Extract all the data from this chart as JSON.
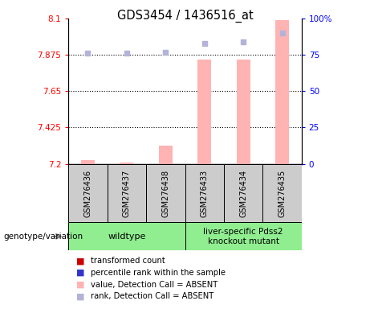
{
  "title": "GDS3454 / 1436516_at",
  "samples": [
    "GSM276436",
    "GSM276437",
    "GSM276438",
    "GSM276433",
    "GSM276434",
    "GSM276435"
  ],
  "transformed_counts": [
    7.225,
    7.21,
    7.31,
    7.845,
    7.845,
    8.09
  ],
  "percentile_ranks": [
    76,
    76,
    77,
    83,
    84,
    90
  ],
  "ylim_left": [
    7.2,
    8.1
  ],
  "ylim_right": [
    0,
    100
  ],
  "yticks_left": [
    7.2,
    7.425,
    7.65,
    7.875,
    8.1
  ],
  "yticks_right": [
    0,
    25,
    50,
    75,
    100
  ],
  "ytick_labels_left": [
    "7.2",
    "7.425",
    "7.65",
    "7.875",
    "8.1"
  ],
  "ytick_labels_right": [
    "0",
    "25",
    "50",
    "75",
    "100%"
  ],
  "bar_color": "#ffb3b3",
  "dot_color": "#b3b3d9",
  "bar_width": 0.35,
  "genotype_label": "genotype/variation",
  "wt_label": "wildtype",
  "ko_label": "liver-specific Pdss2\nknockout mutant",
  "group_color": "#90ee90",
  "sample_box_color": "#cccccc",
  "legend_items": [
    {
      "label": "transformed count",
      "color": "#cc0000"
    },
    {
      "label": "percentile rank within the sample",
      "color": "#3333cc"
    },
    {
      "label": "value, Detection Call = ABSENT",
      "color": "#ffb3b3"
    },
    {
      "label": "rank, Detection Call = ABSENT",
      "color": "#b3b3d9"
    }
  ]
}
